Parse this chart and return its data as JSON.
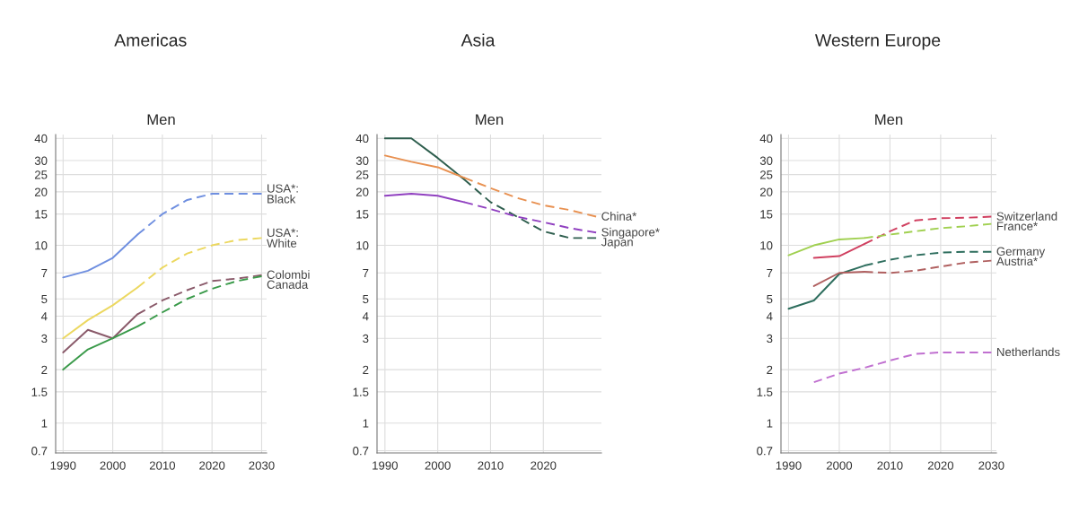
{
  "chart_data": [
    {
      "type": "line",
      "title": "Americas",
      "subtitle": "Men",
      "log": "y",
      "grid": true,
      "xlim": [
        1988.5,
        2031
      ],
      "xticks": [
        1990,
        2000,
        2010,
        2020,
        2030
      ],
      "ylim": [
        0.68,
        42
      ],
      "yticks": [
        0.7,
        1,
        1.5,
        2,
        3,
        4,
        5,
        7,
        10,
        15,
        20,
        25,
        30,
        40
      ],
      "series": [
        {
          "color": "#6f8fe0",
          "line_style": "solid",
          "x": [
            1990,
            1995,
            2000,
            2005
          ],
          "values": [
            6.6,
            7.2,
            8.5,
            11.5
          ]
        },
        {
          "name": "USA*:\nBlack",
          "color": "#6f8fe0",
          "line_style": "dashed",
          "x": [
            2005,
            2010,
            2015,
            2020,
            2025,
            2030
          ],
          "values": [
            11.5,
            15,
            18,
            19.5,
            19.5,
            19.5
          ]
        },
        {
          "color": "#ecd860",
          "line_style": "solid",
          "x": [
            1990,
            1995,
            2000,
            2005
          ],
          "values": [
            3.0,
            3.8,
            4.6,
            5.8
          ]
        },
        {
          "name": "USA*:\nWhite",
          "color": "#ecd860",
          "line_style": "dashed",
          "x": [
            2005,
            2010,
            2015,
            2020,
            2025,
            2030
          ],
          "values": [
            5.8,
            7.5,
            9,
            10,
            10.7,
            11
          ]
        },
        {
          "color": "#8a5a6a",
          "line_style": "solid",
          "x": [
            1990,
            1995,
            2000,
            2005
          ],
          "values": [
            2.5,
            3.35,
            3.0,
            4.1
          ]
        },
        {
          "name": "Colombi",
          "color": "#8a5a6a",
          "line_style": "dashed",
          "x": [
            2005,
            2010,
            2015,
            2020,
            2025,
            2030
          ],
          "values": [
            4.1,
            4.9,
            5.6,
            6.3,
            6.5,
            6.8
          ]
        },
        {
          "color": "#3a9a4a",
          "line_style": "solid",
          "x": [
            1990,
            1995,
            2000,
            2005
          ],
          "values": [
            2.0,
            2.6,
            3.0,
            3.5
          ]
        },
        {
          "name": "Canada",
          "color": "#3a9a4a",
          "line_style": "dashed",
          "x": [
            2005,
            2010,
            2015,
            2020,
            2025,
            2030
          ],
          "values": [
            3.5,
            4.2,
            5.0,
            5.7,
            6.3,
            6.7
          ]
        }
      ]
    },
    {
      "type": "line",
      "title": "Asia",
      "subtitle": "Men",
      "log": "y",
      "grid": true,
      "xlim": [
        1988.5,
        2031
      ],
      "xticks": [
        1990,
        2000,
        2010,
        2020
      ],
      "ylim": [
        0.68,
        42
      ],
      "yticks": [
        0.7,
        1,
        1.5,
        2,
        3,
        4,
        5,
        7,
        10,
        15,
        20,
        25,
        30,
        40
      ],
      "series": [
        {
          "color": "#2e5e4e",
          "line_style": "solid",
          "x": [
            1990,
            1995,
            2000,
            2005
          ],
          "values": [
            40,
            40,
            31,
            23.5
          ]
        },
        {
          "name": "Japan",
          "color": "#2e5e4e",
          "line_style": "dashed",
          "x": [
            2005,
            2010,
            2015,
            2020,
            2025,
            2030
          ],
          "values": [
            23.5,
            17.5,
            14.5,
            12,
            11,
            11
          ]
        },
        {
          "color": "#e89050",
          "line_style": "solid",
          "x": [
            1990,
            1995,
            2000,
            2005
          ],
          "values": [
            32,
            29.5,
            27.5,
            24
          ]
        },
        {
          "name": "China*",
          "color": "#e89050",
          "line_style": "dashed",
          "x": [
            2005,
            2010,
            2015,
            2020,
            2025,
            2030
          ],
          "values": [
            24,
            21,
            18.5,
            16.8,
            15.8,
            14.5
          ]
        },
        {
          "color": "#9040c0",
          "line_style": "solid",
          "x": [
            1990,
            1995,
            2000,
            2005
          ],
          "values": [
            19,
            19.5,
            19,
            17.5
          ]
        },
        {
          "name": "Singapore*",
          "color": "#9040c0",
          "line_style": "dashed",
          "x": [
            2005,
            2010,
            2015,
            2020,
            2025,
            2030
          ],
          "values": [
            17.5,
            16,
            14.5,
            13.5,
            12.5,
            11.8
          ]
        }
      ]
    },
    {
      "type": "line",
      "title": "Western Europe",
      "subtitle": "Men",
      "log": "y",
      "grid": true,
      "xlim": [
        1988.5,
        2031
      ],
      "xticks": [
        1990,
        2000,
        2010,
        2020,
        2030
      ],
      "ylim": [
        0.68,
        42
      ],
      "yticks": [
        0.7,
        1,
        1.5,
        2,
        3,
        4,
        5,
        7,
        10,
        15,
        20,
        25,
        30,
        40
      ],
      "series": [
        {
          "color": "#d04060",
          "line_style": "solid",
          "x": [
            1995,
            2000,
            2005
          ],
          "values": [
            8.5,
            8.7,
            10.2
          ]
        },
        {
          "name": "Switzerland",
          "color": "#d04060",
          "line_style": "dashed",
          "x": [
            2005,
            2010,
            2015,
            2020,
            2025,
            2030
          ],
          "values": [
            10.2,
            12,
            13.8,
            14.2,
            14.3,
            14.5
          ]
        },
        {
          "color": "#a0d050",
          "line_style": "solid",
          "x": [
            1990,
            1995,
            2000,
            2005
          ],
          "values": [
            8.8,
            10.0,
            10.8,
            11.0
          ]
        },
        {
          "name": "France*",
          "color": "#a0d050",
          "line_style": "dashed",
          "x": [
            2005,
            2010,
            2015,
            2020,
            2025,
            2030
          ],
          "values": [
            11.0,
            11.5,
            12.0,
            12.5,
            12.8,
            13.2
          ]
        },
        {
          "color": "#2e6e5e",
          "line_style": "solid",
          "x": [
            1990,
            1995,
            2000,
            2005
          ],
          "values": [
            4.4,
            4.9,
            6.9,
            7.7
          ]
        },
        {
          "name": "Germany",
          "color": "#2e6e5e",
          "line_style": "dashed",
          "x": [
            2005,
            2010,
            2015,
            2020,
            2025,
            2030
          ],
          "values": [
            7.7,
            8.3,
            8.8,
            9.1,
            9.2,
            9.2
          ]
        },
        {
          "color": "#b06060",
          "line_style": "solid",
          "x": [
            1995,
            2000,
            2005
          ],
          "values": [
            5.9,
            7.0,
            7.1
          ]
        },
        {
          "name": "Austria*",
          "color": "#b06060",
          "line_style": "dashed",
          "x": [
            2005,
            2010,
            2015,
            2020,
            2025,
            2030
          ],
          "values": [
            7.1,
            7.0,
            7.2,
            7.6,
            8.0,
            8.2
          ]
        },
        {
          "name": "Netherlands",
          "color": "#c070d0",
          "line_style": "dashed",
          "x": [
            1995,
            2000,
            2005,
            2010,
            2015,
            2020,
            2025,
            2030
          ],
          "values": [
            1.7,
            1.9,
            2.05,
            2.25,
            2.45,
            2.5,
            2.5,
            2.5
          ]
        }
      ]
    }
  ]
}
